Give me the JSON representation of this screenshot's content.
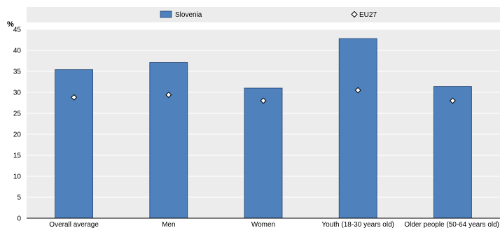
{
  "chart_data": {
    "type": "bar",
    "categories": [
      "Overall average",
      "Men",
      "Women",
      "Youth (18-30 years old)",
      "Older people (50-64 years old)"
    ],
    "series": [
      {
        "name": "Slovenia",
        "kind": "bar",
        "color": "#4f81bd",
        "values": [
          35.4,
          37.1,
          31.0,
          42.8,
          31.4
        ]
      },
      {
        "name": "EU27",
        "kind": "marker",
        "marker": "diamond",
        "color": "#ffffff",
        "values": [
          28.8,
          29.4,
          28.0,
          30.5,
          28.0
        ]
      }
    ],
    "ylabel": "%",
    "ylim": [
      0,
      45
    ],
    "yticks": [
      0,
      5,
      10,
      15,
      20,
      25,
      30,
      35,
      40,
      45
    ],
    "grid": true,
    "legend_position": "top",
    "colors": {
      "plot_background": "#ececec",
      "gridline": "#ffffff",
      "bar_border": "#1f3f6e"
    }
  }
}
